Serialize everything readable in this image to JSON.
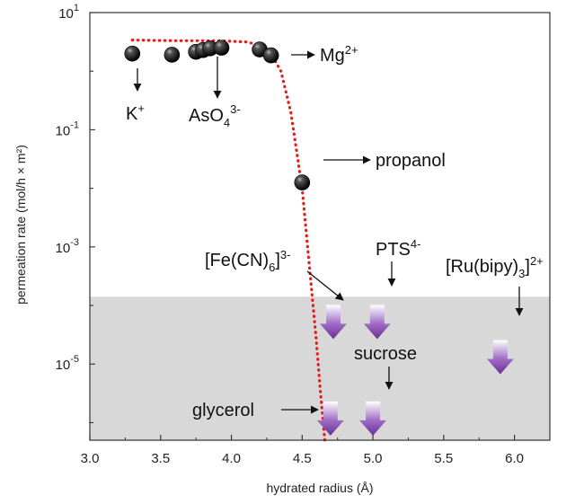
{
  "chart_data": {
    "type": "scatter",
    "xlabel": "hydrated radius (Å)",
    "ylabel": "permeation rate (mol/h × m²)",
    "xlim": [
      3.0,
      6.25
    ],
    "ylim_log10": [
      -6.3,
      1.0
    ],
    "y_scale": "log",
    "x_ticks": [
      "3.0",
      "3.5",
      "4.0",
      "4.5",
      "5.0",
      "5.5",
      "6.0"
    ],
    "x_tick_values": [
      3.0,
      3.5,
      4.0,
      4.5,
      5.0,
      5.5,
      6.0
    ],
    "y_tick_exponents": [
      1,
      -1,
      -3,
      -5
    ],
    "y_tick_base": "10",
    "y_tick_exponent_labels": [
      "1",
      "-1",
      "-3",
      "-5"
    ],
    "detection_limit_log10": -3.85,
    "shaded_region_color": "#d8d8d8",
    "points": [
      {
        "x": 3.3,
        "y_log10": 0.3
      },
      {
        "x": 3.58,
        "y_log10": 0.28
      },
      {
        "x": 3.75,
        "y_log10": 0.33
      },
      {
        "x": 3.8,
        "y_log10": 0.36
      },
      {
        "x": 3.85,
        "y_log10": 0.39
      },
      {
        "x": 3.93,
        "y_log10": 0.4
      },
      {
        "x": 4.2,
        "y_log10": 0.37
      },
      {
        "x": 4.28,
        "y_log10": 0.27
      },
      {
        "x": 4.5,
        "y_log10": -1.9
      }
    ],
    "fit_curve": {
      "color": "#e02020",
      "x": [
        3.3,
        3.6,
        3.9,
        4.1,
        4.2,
        4.28,
        4.35,
        4.42,
        4.5,
        4.55,
        4.6,
        4.63,
        4.66
      ],
      "y_log10": [
        0.53,
        0.52,
        0.52,
        0.5,
        0.45,
        0.3,
        0.0,
        -0.7,
        -2.0,
        -3.3,
        -4.6,
        -5.5,
        -6.3
      ]
    },
    "below_limit_arrows": [
      {
        "x": 4.72,
        "y_log10": -4.25
      },
      {
        "x": 5.03,
        "y_log10": -4.25
      },
      {
        "x": 5.9,
        "y_log10": -4.85
      },
      {
        "x": 5.0,
        "y_log10": -5.9
      },
      {
        "x": 4.7,
        "y_log10": -5.9
      }
    ],
    "annotations": {
      "k": {
        "base": "K",
        "sup": "+"
      },
      "aso4": {
        "base": "AsO",
        "sub": "4",
        "sup": "3-"
      },
      "mg": {
        "base": "Mg",
        "sup": "2+"
      },
      "propanol": {
        "text": "propanol"
      },
      "fecn": {
        "b1": "[Fe(CN)",
        "sub": "6",
        "b2": "]",
        "sup": "3-"
      },
      "pts": {
        "base": "PTS",
        "sup": "4-"
      },
      "rubipy": {
        "b1": "[Ru(bipy)",
        "sub": "3",
        "b2": "]",
        "sup": "2+"
      },
      "sucrose": {
        "text": "sucrose"
      },
      "glycerol": {
        "text": "glycerol"
      }
    },
    "colors": {
      "marker": "#1a1a1a",
      "arrow": "#7b3fa0",
      "fit": "#e02020"
    }
  }
}
